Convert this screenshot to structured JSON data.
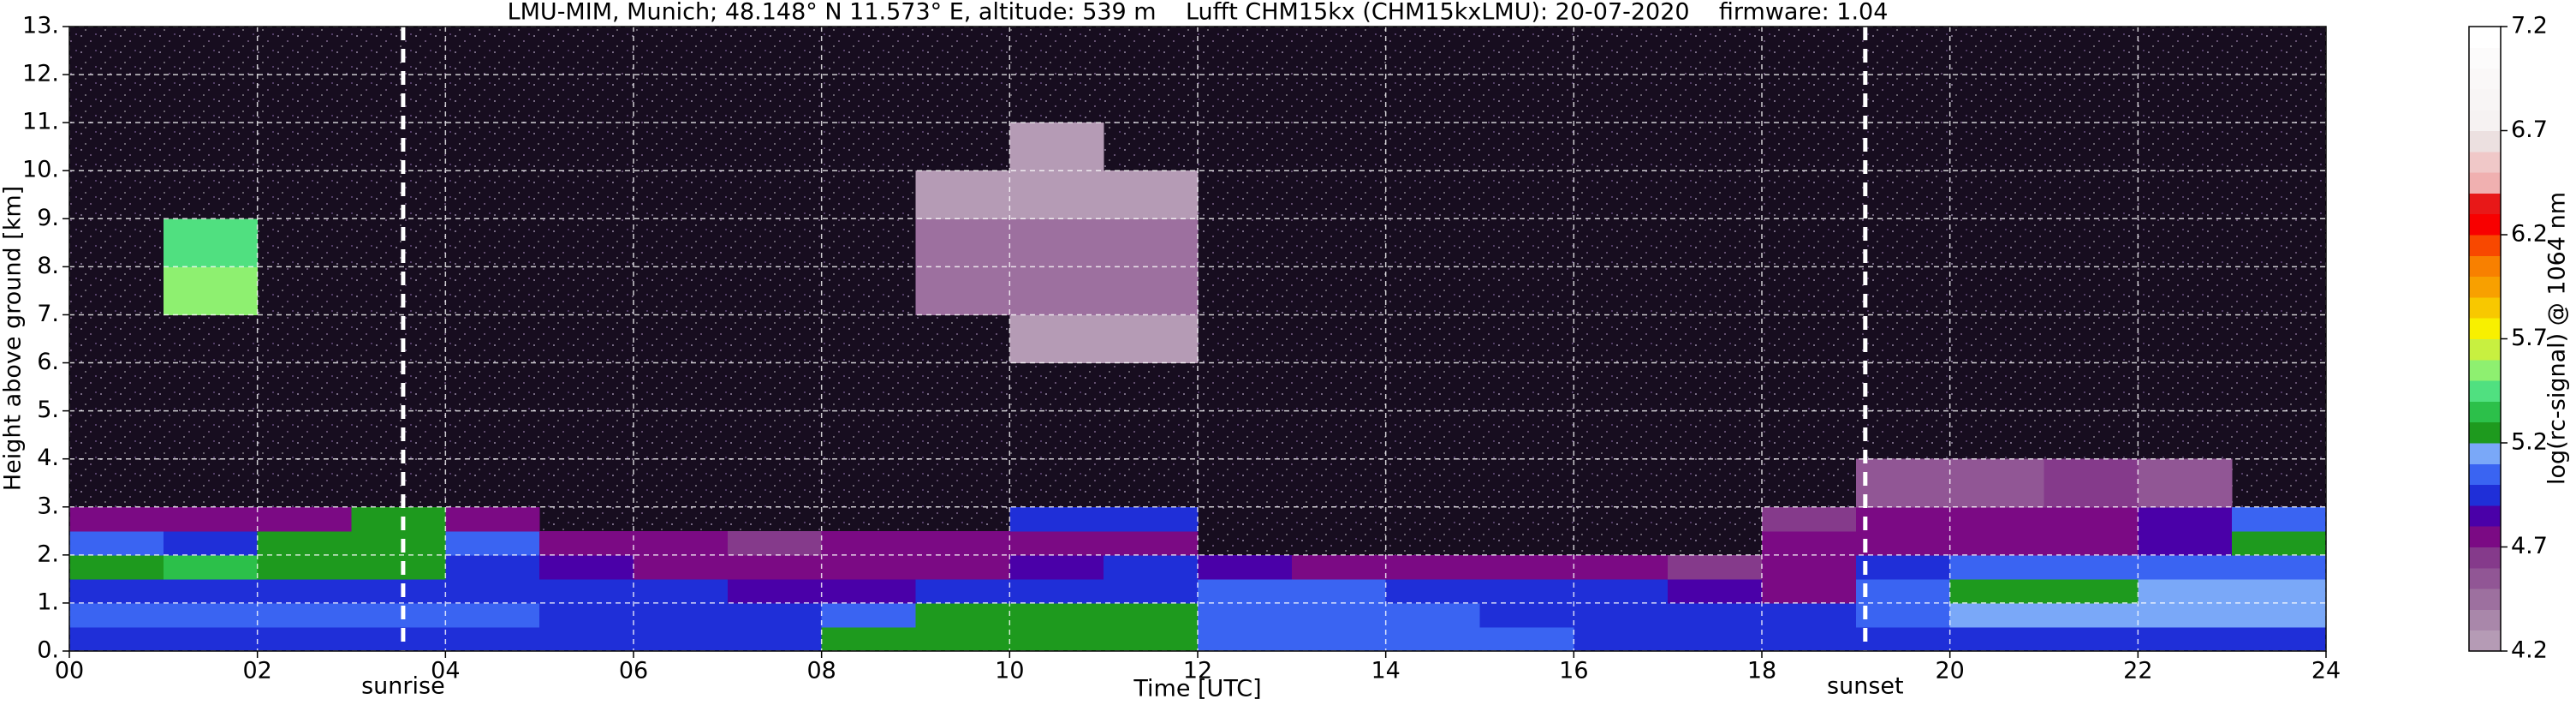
{
  "chart_data": {
    "type": "heatmap",
    "title": "LMU-MIM, Munich; 48.148° N 11.573° E, altitude: 539 m    Lufft CHM15kx (CHM15kxLMU): 20-07-2020    firmware: 1.04",
    "xlabel": "Time [UTC]",
    "ylabel": "Height above ground [km]",
    "xlim": [
      0,
      24
    ],
    "xticks": [
      {
        "value": 0,
        "label": "00"
      },
      {
        "value": 2,
        "label": "02"
      },
      {
        "value": 4,
        "label": "04"
      },
      {
        "value": 6,
        "label": "06"
      },
      {
        "value": 8,
        "label": "08"
      },
      10,
      12,
      14,
      16,
      18,
      20,
      22,
      24
    ],
    "ylim": [
      0,
      13
    ],
    "yticks": [
      {
        "value": 0,
        "label": "0."
      },
      {
        "value": 1,
        "label": "1."
      },
      {
        "value": 2,
        "label": "2."
      },
      {
        "value": 3,
        "label": "3."
      },
      {
        "value": 4,
        "label": "4."
      },
      {
        "value": 5,
        "label": "5."
      },
      {
        "value": 6,
        "label": "6."
      },
      {
        "value": 7,
        "label": "7."
      },
      {
        "value": 8,
        "label": "8."
      },
      {
        "value": 9,
        "label": "9."
      },
      {
        "value": 10,
        "label": "10."
      },
      {
        "value": 11,
        "label": "11."
      },
      {
        "value": 12,
        "label": "12."
      },
      {
        "value": 13,
        "label": "13."
      }
    ],
    "grid": true,
    "background": "#170d1f",
    "xbins": [
      0,
      1,
      2,
      3,
      4,
      5,
      6,
      7,
      8,
      9,
      10,
      11,
      12,
      13,
      14,
      15,
      16,
      17,
      18,
      19,
      20,
      21,
      22,
      23,
      24
    ],
    "ybins": [
      0,
      0.5,
      1,
      1.5,
      2,
      2.5,
      3,
      4,
      5,
      6,
      7,
      8,
      9,
      10,
      11,
      12,
      13
    ],
    "z": [
      [
        4.95,
        4.95,
        4.95,
        4.95,
        4.95,
        4.95,
        4.95,
        4.95,
        5.2,
        5.3,
        5.3,
        5.3,
        5.05,
        5.05,
        5.05,
        5.05,
        5.0,
        5.0,
        5.0,
        5.0,
        4.95,
        4.95,
        4.95,
        4.95
      ],
      [
        5.05,
        5.05,
        5.05,
        5.05,
        5.05,
        5.0,
        5.0,
        5.0,
        5.1,
        5.2,
        5.25,
        5.2,
        5.05,
        5.05,
        5.05,
        5.0,
        5.0,
        5.0,
        4.95,
        5.1,
        5.15,
        5.15,
        5.15,
        5.15
      ],
      [
        5.0,
        5.0,
        5.0,
        5.0,
        4.95,
        4.9,
        4.9,
        4.85,
        4.85,
        4.9,
        4.95,
        4.95,
        5.05,
        5.05,
        5.0,
        4.95,
        4.9,
        4.85,
        4.8,
        5.05,
        5.25,
        5.2,
        5.15,
        5.15
      ],
      [
        5.3,
        5.35,
        5.3,
        5.25,
        5.0,
        4.85,
        4.8,
        4.75,
        4.8,
        4.8,
        4.85,
        4.9,
        4.85,
        4.8,
        4.75,
        4.7,
        4.7,
        4.65,
        4.7,
        4.9,
        5.05,
        5.05,
        5.05,
        5.05
      ],
      [
        5.1,
        5.0,
        5.2,
        5.25,
        5.1,
        4.8,
        4.7,
        4.65,
        4.7,
        4.75,
        4.8,
        4.75,
        null,
        null,
        null,
        null,
        null,
        null,
        4.7,
        4.8,
        4.75,
        4.8,
        4.85,
        5.2
      ],
      [
        4.7,
        4.7,
        4.8,
        5.3,
        4.8,
        null,
        null,
        null,
        null,
        null,
        4.9,
        5.0,
        null,
        null,
        null,
        null,
        null,
        null,
        4.65,
        4.75,
        4.8,
        4.8,
        4.85,
        5.1
      ],
      [
        null,
        null,
        null,
        null,
        null,
        null,
        null,
        null,
        null,
        null,
        null,
        null,
        null,
        null,
        null,
        null,
        null,
        null,
        null,
        4.6,
        4.6,
        4.65,
        4.6,
        null
      ],
      [
        null,
        null,
        null,
        null,
        null,
        null,
        null,
        null,
        null,
        null,
        null,
        null,
        null,
        null,
        null,
        null,
        null,
        null,
        null,
        null,
        null,
        null,
        null,
        null
      ],
      [
        null,
        null,
        null,
        null,
        null,
        null,
        null,
        null,
        null,
        null,
        null,
        null,
        null,
        null,
        null,
        null,
        null,
        null,
        null,
        null,
        null,
        null,
        null,
        null
      ],
      [
        null,
        null,
        null,
        null,
        null,
        null,
        null,
        null,
        null,
        null,
        4.3,
        4.3,
        null,
        null,
        null,
        null,
        null,
        null,
        null,
        null,
        null,
        null,
        null,
        null
      ],
      [
        null,
        5.6,
        null,
        null,
        null,
        null,
        null,
        null,
        null,
        4.4,
        4.4,
        4.4,
        null,
        null,
        null,
        null,
        null,
        null,
        null,
        null,
        null,
        null,
        null,
        null
      ],
      [
        null,
        5.4,
        null,
        null,
        null,
        null,
        null,
        null,
        null,
        4.4,
        4.4,
        4.4,
        null,
        null,
        null,
        null,
        null,
        null,
        null,
        null,
        null,
        null,
        null,
        null
      ],
      [
        null,
        null,
        null,
        null,
        null,
        null,
        null,
        null,
        null,
        4.3,
        4.3,
        4.3,
        null,
        null,
        null,
        null,
        null,
        null,
        null,
        null,
        null,
        null,
        null,
        null
      ],
      [
        null,
        null,
        null,
        null,
        null,
        null,
        null,
        null,
        null,
        null,
        4.3,
        null,
        null,
        null,
        null,
        null,
        null,
        null,
        null,
        null,
        null,
        null,
        null,
        null
      ],
      [
        null,
        null,
        null,
        null,
        null,
        null,
        null,
        null,
        null,
        null,
        null,
        null,
        null,
        null,
        null,
        null,
        null,
        null,
        null,
        null,
        null,
        null,
        null,
        null
      ],
      [
        null,
        null,
        null,
        null,
        null,
        null,
        null,
        null,
        null,
        null,
        null,
        null,
        null,
        null,
        null,
        null,
        null,
        null,
        null,
        null,
        null,
        null,
        null,
        null
      ]
    ],
    "annotations": [
      {
        "x": 3.55,
        "label": "sunrise"
      },
      {
        "x": 19.1,
        "label": "sunset"
      }
    ],
    "colorbar": {
      "label": "log(rc-signal) @ 1064 nm",
      "lim": [
        4.2,
        7.2
      ],
      "ticks": [
        4.2,
        4.7,
        5.2,
        5.7,
        6.2,
        6.7,
        7.2
      ],
      "colors": [
        "#b59bb5",
        "#a987aa",
        "#9d709f",
        "#915695",
        "#853a8b",
        "#7b0a84",
        "#4a00a8",
        "#1f2fd8",
        "#3a64f2",
        "#7aa8f8",
        "#1e9a1e",
        "#2cc04a",
        "#50e080",
        "#8ef070",
        "#c8f040",
        "#f8f000",
        "#f8c800",
        "#f8a000",
        "#f88000",
        "#f84800",
        "#f80000",
        "#e81818",
        "#f0b0b0",
        "#f0c8c8",
        "#ece0e0",
        "#f6f2f2",
        "#f8f5f5",
        "#faf8f8",
        "#fcfbfb",
        "#ffffff"
      ]
    }
  }
}
